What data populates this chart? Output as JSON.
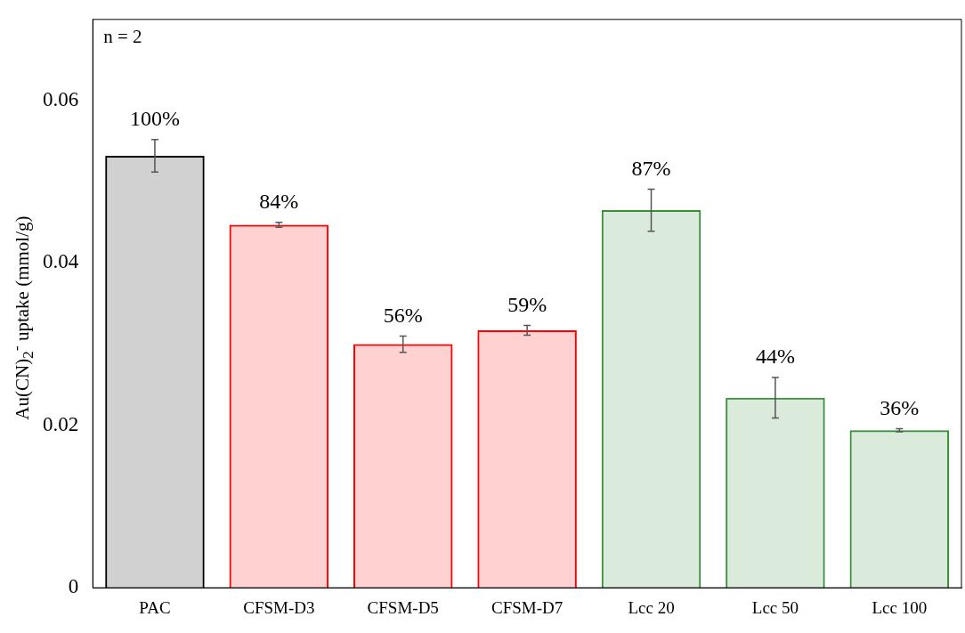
{
  "chart_data": {
    "type": "bar",
    "ylabel": "Au(CN)$_{2}$$^{-}$ uptake (mmol/g)",
    "categories": [
      "PAC",
      "CFSM-D3",
      "CFSM-D5",
      "CFSM-D7",
      "Lcc 20",
      "Lcc 50",
      "Lcc 100"
    ],
    "values": [
      0.0532,
      0.0447,
      0.03,
      0.0317,
      0.0465,
      0.0234,
      0.0194
    ],
    "errors": [
      0.002,
      0.0003,
      0.001,
      0.0006,
      0.0026,
      0.0025,
      0.0002
    ],
    "colors": [
      "#000000",
      "#ff0000",
      "#ff0000",
      "#ff0000",
      "#3a8f3a",
      "#3a8f3a",
      "#3a8f3a"
    ],
    "annotations": [
      "n = 2",
      {
        "text": "100%",
        "x": "PAC",
        "y": 0.0532
      },
      {
        "text": "84%",
        "x": "CFSM-D3",
        "y": 0.0447
      },
      {
        "text": "56%",
        "x": "CFSM-D5",
        "y": 0.03
      },
      {
        "text": "59%",
        "x": "CFSM-D7",
        "y": 0.0317
      },
      {
        "text": "87%",
        "x": "Lcc 20",
        "y": 0.0465
      },
      {
        "text": "44%",
        "x": "Lcc 50",
        "y": 0.0234
      },
      {
        "text": "36%",
        "x": "Lcc 100",
        "y": 0.0194
      }
    ],
    "ylim": [
      0,
      0.07
    ],
    "yticks": [
      0,
      0.02,
      0.04,
      0.06
    ],
    "grid": false,
    "legend": false
  }
}
